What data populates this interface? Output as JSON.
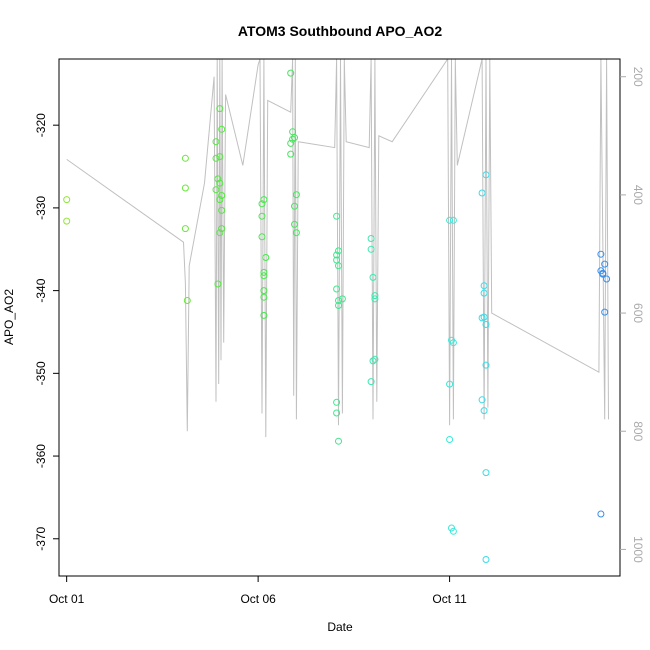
{
  "chart_data": {
    "type": "scatter",
    "title": "ATOM3 Southbound APO_AO2",
    "xlabel": "Date",
    "ylabel": "APO_AO2",
    "x_ticks": [
      {
        "label": "Oct 01",
        "day": 1
      },
      {
        "label": "Oct 06",
        "day": 6
      },
      {
        "label": "Oct 11",
        "day": 11
      }
    ],
    "xlim_days": [
      0.8,
      15.45
    ],
    "ylim": [
      -374.5,
      -312
    ],
    "y_ticks": [
      -320,
      -330,
      -340,
      -350,
      -360,
      -370
    ],
    "y2_ticks": [
      200,
      400,
      600,
      800,
      1000
    ],
    "y2lim": [
      1045,
      170
    ],
    "y2_axis_color": "#aaaaaa",
    "line_color": "#c0c0c0",
    "points": [
      {
        "day": 1.0,
        "value": -329.0,
        "color": "#90e832"
      },
      {
        "day": 1.0,
        "value": -331.6,
        "color": "#90e832"
      },
      {
        "day": 4.1,
        "value": -324.0,
        "color": "#6ae83a"
      },
      {
        "day": 4.1,
        "value": -327.6,
        "color": "#6ae83a"
      },
      {
        "day": 4.1,
        "value": -332.5,
        "color": "#6ae83a"
      },
      {
        "day": 4.15,
        "value": -341.2,
        "color": "#6ae83a"
      },
      {
        "day": 4.9,
        "value": -322.0,
        "color": "#55e840"
      },
      {
        "day": 4.9,
        "value": -324.0,
        "color": "#55e840"
      },
      {
        "day": 4.95,
        "value": -326.5,
        "color": "#55e840"
      },
      {
        "day": 4.9,
        "value": -327.8,
        "color": "#55e840"
      },
      {
        "day": 5.0,
        "value": -318.0,
        "color": "#55e840"
      },
      {
        "day": 5.05,
        "value": -320.5,
        "color": "#55e840"
      },
      {
        "day": 5.0,
        "value": -323.8,
        "color": "#55e840"
      },
      {
        "day": 5.0,
        "value": -327.0,
        "color": "#55e840"
      },
      {
        "day": 5.05,
        "value": -328.5,
        "color": "#55e840"
      },
      {
        "day": 5.0,
        "value": -329.0,
        "color": "#55e840"
      },
      {
        "day": 5.05,
        "value": -330.3,
        "color": "#55e840"
      },
      {
        "day": 5.05,
        "value": -332.5,
        "color": "#55e840"
      },
      {
        "day": 5.0,
        "value": -333.0,
        "color": "#55e840"
      },
      {
        "day": 4.95,
        "value": -339.2,
        "color": "#55e840"
      },
      {
        "day": 6.1,
        "value": -329.5,
        "color": "#48e84a"
      },
      {
        "day": 6.15,
        "value": -329.0,
        "color": "#48e84a"
      },
      {
        "day": 6.1,
        "value": -331.0,
        "color": "#48e84a"
      },
      {
        "day": 6.1,
        "value": -333.5,
        "color": "#48e84a"
      },
      {
        "day": 6.2,
        "value": -336.0,
        "color": "#48e84a"
      },
      {
        "day": 6.15,
        "value": -337.8,
        "color": "#48e84a"
      },
      {
        "day": 6.15,
        "value": -338.2,
        "color": "#48e84a"
      },
      {
        "day": 6.15,
        "value": -340.0,
        "color": "#48e84a"
      },
      {
        "day": 6.15,
        "value": -340.8,
        "color": "#48e84a"
      },
      {
        "day": 6.15,
        "value": -343.0,
        "color": "#48e84a"
      },
      {
        "day": 6.85,
        "value": -313.7,
        "color": "#42e85a"
      },
      {
        "day": 6.9,
        "value": -320.8,
        "color": "#42e85a"
      },
      {
        "day": 6.9,
        "value": -321.7,
        "color": "#42e85a"
      },
      {
        "day": 6.85,
        "value": -322.2,
        "color": "#42e85a"
      },
      {
        "day": 6.95,
        "value": -321.5,
        "color": "#42e85a"
      },
      {
        "day": 6.85,
        "value": -323.5,
        "color": "#42e85a"
      },
      {
        "day": 7.0,
        "value": -328.4,
        "color": "#42e85a"
      },
      {
        "day": 6.95,
        "value": -329.8,
        "color": "#42e85a"
      },
      {
        "day": 6.95,
        "value": -332.0,
        "color": "#42e85a"
      },
      {
        "day": 7.0,
        "value": -333.0,
        "color": "#42e85a"
      },
      {
        "day": 8.05,
        "value": -331.0,
        "color": "#3ee88c"
      },
      {
        "day": 8.1,
        "value": -335.2,
        "color": "#3ee88c"
      },
      {
        "day": 8.05,
        "value": -335.7,
        "color": "#3ee88c"
      },
      {
        "day": 8.05,
        "value": -336.3,
        "color": "#3ee88c"
      },
      {
        "day": 8.1,
        "value": -337.0,
        "color": "#3ee88c"
      },
      {
        "day": 8.05,
        "value": -339.8,
        "color": "#3ee88c"
      },
      {
        "day": 8.2,
        "value": -341.0,
        "color": "#3ee88c"
      },
      {
        "day": 8.1,
        "value": -341.2,
        "color": "#3ee88c"
      },
      {
        "day": 8.1,
        "value": -341.8,
        "color": "#3ee88c"
      },
      {
        "day": 8.05,
        "value": -353.5,
        "color": "#3ee88c"
      },
      {
        "day": 8.05,
        "value": -354.8,
        "color": "#3ee88c"
      },
      {
        "day": 8.1,
        "value": -358.2,
        "color": "#3ee88c"
      },
      {
        "day": 8.95,
        "value": -333.7,
        "color": "#3ce8b0"
      },
      {
        "day": 8.95,
        "value": -335.0,
        "color": "#3ce8b0"
      },
      {
        "day": 9.0,
        "value": -338.4,
        "color": "#3ce8b0"
      },
      {
        "day": 9.05,
        "value": -340.6,
        "color": "#3ce8b0"
      },
      {
        "day": 9.05,
        "value": -341.0,
        "color": "#3ce8b0"
      },
      {
        "day": 9.0,
        "value": -348.5,
        "color": "#3ce8b0"
      },
      {
        "day": 9.05,
        "value": -348.3,
        "color": "#3ce8b0"
      },
      {
        "day": 8.95,
        "value": -351.0,
        "color": "#3ce8b0"
      },
      {
        "day": 11.0,
        "value": -331.5,
        "color": "#3ae8d8"
      },
      {
        "day": 11.1,
        "value": -331.5,
        "color": "#3ae8d8"
      },
      {
        "day": 11.05,
        "value": -346.0,
        "color": "#3ae8d8"
      },
      {
        "day": 11.1,
        "value": -346.3,
        "color": "#3ae8d8"
      },
      {
        "day": 11.0,
        "value": -351.3,
        "color": "#3ae8d8"
      },
      {
        "day": 11.0,
        "value": -358.0,
        "color": "#3ae8d8"
      },
      {
        "day": 11.05,
        "value": -368.7,
        "color": "#3ae8d8"
      },
      {
        "day": 11.1,
        "value": -369.1,
        "color": "#3ae8d8"
      },
      {
        "day": 11.85,
        "value": -328.2,
        "color": "#38dce8"
      },
      {
        "day": 11.95,
        "value": -326.0,
        "color": "#38dce8"
      },
      {
        "day": 11.9,
        "value": -339.4,
        "color": "#38dce8"
      },
      {
        "day": 11.9,
        "value": -340.3,
        "color": "#38dce8"
      },
      {
        "day": 11.85,
        "value": -343.3,
        "color": "#38dce8"
      },
      {
        "day": 11.9,
        "value": -343.2,
        "color": "#38dce8"
      },
      {
        "day": 11.95,
        "value": -344.1,
        "color": "#38dce8"
      },
      {
        "day": 11.95,
        "value": -349.0,
        "color": "#38dce8"
      },
      {
        "day": 11.85,
        "value": -353.2,
        "color": "#38dce8"
      },
      {
        "day": 11.9,
        "value": -354.5,
        "color": "#38dce8"
      },
      {
        "day": 11.95,
        "value": -362.0,
        "color": "#38dce8"
      },
      {
        "day": 11.95,
        "value": -372.5,
        "color": "#38dce8"
      },
      {
        "day": 14.95,
        "value": -335.6,
        "color": "#3a8ee8"
      },
      {
        "day": 15.05,
        "value": -336.8,
        "color": "#3a8ee8"
      },
      {
        "day": 14.95,
        "value": -337.6,
        "color": "#3a8ee8"
      },
      {
        "day": 15.0,
        "value": -338.0,
        "color": "#3a8ee8"
      },
      {
        "day": 15.0,
        "value": -337.9,
        "color": "#3a8ee8"
      },
      {
        "day": 15.1,
        "value": -338.6,
        "color": "#3a8ee8"
      },
      {
        "day": 15.05,
        "value": -342.6,
        "color": "#3a8ee8"
      },
      {
        "day": 14.95,
        "value": -367.0,
        "color": "#3a8ee8"
      }
    ],
    "altitude_track": [
      [
        1.0,
        340
      ],
      [
        4.05,
        480
      ],
      [
        4.1,
        550
      ],
      [
        4.15,
        800
      ],
      [
        4.2,
        520
      ],
      [
        4.6,
        380
      ],
      [
        4.85,
        200
      ],
      [
        4.9,
        750
      ],
      [
        4.93,
        170
      ],
      [
        4.97,
        720
      ],
      [
        5.0,
        170
      ],
      [
        5.03,
        680
      ],
      [
        5.06,
        170
      ],
      [
        5.1,
        650
      ],
      [
        5.15,
        230
      ],
      [
        5.6,
        350
      ],
      [
        6.0,
        180
      ],
      [
        6.05,
        170
      ],
      [
        6.1,
        770
      ],
      [
        6.15,
        170
      ],
      [
        6.2,
        810
      ],
      [
        6.25,
        240
      ],
      [
        6.85,
        260
      ],
      [
        6.9,
        170
      ],
      [
        6.93,
        740
      ],
      [
        6.97,
        170
      ],
      [
        7.0,
        780
      ],
      [
        7.05,
        310
      ],
      [
        8.0,
        320
      ],
      [
        8.05,
        170
      ],
      [
        8.1,
        790
      ],
      [
        8.15,
        170
      ],
      [
        8.2,
        770
      ],
      [
        8.25,
        170
      ],
      [
        8.3,
        310
      ],
      [
        8.9,
        320
      ],
      [
        8.95,
        170
      ],
      [
        9.0,
        780
      ],
      [
        9.05,
        170
      ],
      [
        9.1,
        750
      ],
      [
        9.15,
        300
      ],
      [
        9.5,
        310
      ],
      [
        10.95,
        170
      ],
      [
        11.0,
        790
      ],
      [
        11.05,
        170
      ],
      [
        11.1,
        780
      ],
      [
        11.15,
        170
      ],
      [
        11.2,
        350
      ],
      [
        11.85,
        170
      ],
      [
        11.9,
        780
      ],
      [
        11.95,
        170
      ],
      [
        12.0,
        760
      ],
      [
        12.05,
        170
      ],
      [
        12.1,
        600
      ],
      [
        14.9,
        700
      ],
      [
        14.95,
        170
      ],
      [
        15.05,
        780
      ],
      [
        15.1,
        170
      ],
      [
        15.15,
        780
      ]
    ]
  }
}
